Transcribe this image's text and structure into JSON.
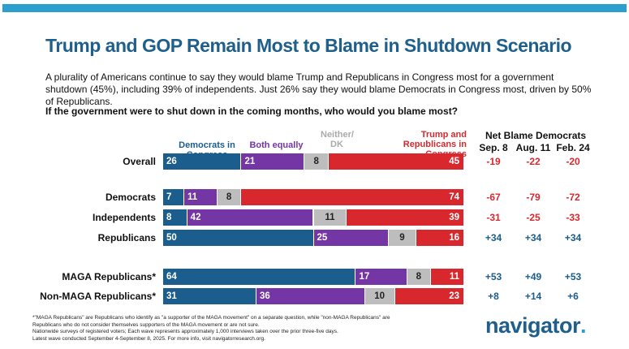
{
  "title": "Trump and GOP Remain Most to Blame in Shutdown Scenario",
  "subtitle": "A plurality of Americans continue to say they would blame Trump and Republicans in Congress most for a government shutdown (45%), including 39% of independents. Just 26% say they would blame Democrats in Congress most, driven by 50% of Republicans.",
  "question": "If the government were to shut down in the coming months, who would you blame most?",
  "colors": {
    "dem": "#1b5d8c",
    "both": "#7435a5",
    "neither": "#bdbdbd",
    "rep": "#d9282d",
    "title": "#1f5f8b"
  },
  "chart_data": {
    "type": "bar",
    "stacked": true,
    "legend": [
      "Democrats in Congress",
      "Both equally",
      "Neither/ DK",
      "Trump and Republicans in Congress"
    ],
    "categories": [
      "Overall",
      "Democrats",
      "Independents",
      "Republicans",
      "MAGA Republicans*",
      "Non-MAGA Republicans*"
    ],
    "series": [
      {
        "name": "Democrats in Congress",
        "values": [
          26,
          7,
          8,
          50,
          64,
          31
        ]
      },
      {
        "name": "Both equally",
        "values": [
          21,
          11,
          42,
          25,
          17,
          36
        ]
      },
      {
        "name": "Neither/ DK",
        "values": [
          8,
          8,
          11,
          9,
          8,
          10
        ]
      },
      {
        "name": "Trump and Republicans in Congress",
        "values": [
          45,
          74,
          39,
          16,
          11,
          23
        ]
      }
    ],
    "net": {
      "title": "Net Blame Democrats",
      "columns": [
        "Sep. 8",
        "Aug. 11",
        "Feb. 24"
      ],
      "rows": [
        [
          "-19",
          "-22",
          "-20"
        ],
        [
          "-67",
          "-79",
          "-72"
        ],
        [
          "-31",
          "-25",
          "-33"
        ],
        [
          "+34",
          "+34",
          "+34"
        ],
        [
          "+53",
          "+49",
          "+53"
        ],
        [
          "+8",
          "+14",
          "+6"
        ]
      ]
    }
  },
  "footnote": [
    "*\"MAGA Republicans\" are Republicans who identify as \"a supporter of the MAGA movement\" on a separate question, while \"non-MAGA Republicans\" are Republicans who do not consider themselves supporters of the MAGA movement or are not sure.",
    "Nationwide surveys of registered voters; Each wave represents approximately 1,000 interviews taken over the prior three-five days.",
    "Latest wave conducted September 4-September 8, 2025. For more info, visit navigatorresearch.org."
  ],
  "logo": {
    "text": "navigator",
    "dot": "."
  }
}
